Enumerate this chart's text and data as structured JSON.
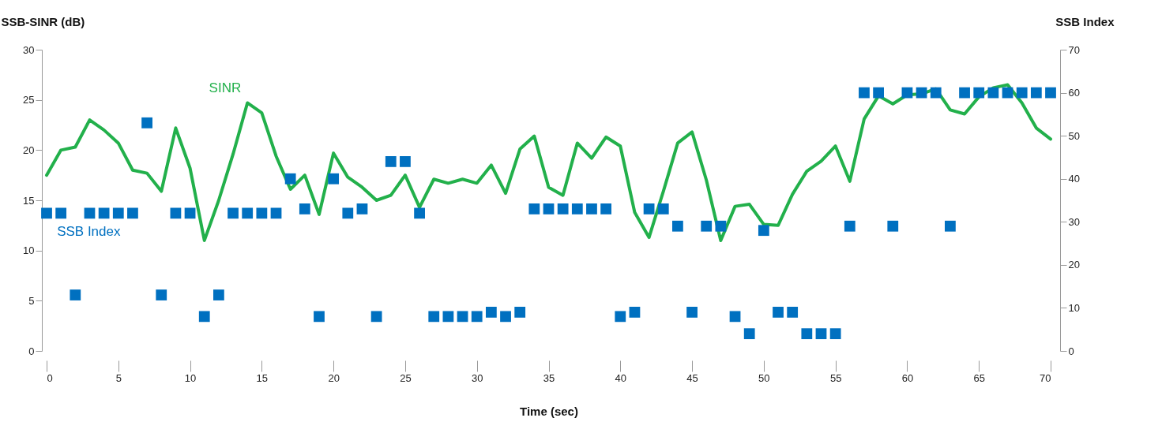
{
  "chart_data": {
    "type": "line",
    "xlabel": "Time (sec)",
    "ylabel": "SSB-SINR (dB)",
    "y2label": "SSB Index",
    "x": [
      0,
      1,
      2,
      3,
      4,
      5,
      6,
      7,
      8,
      9,
      10,
      11,
      12,
      13,
      14,
      15,
      16,
      17,
      18,
      19,
      20,
      21,
      22,
      23,
      24,
      25,
      26,
      27,
      28,
      29,
      30,
      31,
      32,
      33,
      34,
      35,
      36,
      37,
      38,
      39,
      40,
      41,
      42,
      43,
      44,
      45,
      46,
      47,
      48,
      49,
      50,
      51,
      52,
      53,
      54,
      55,
      56,
      57,
      58,
      59,
      60,
      61,
      62,
      63,
      64,
      65,
      66,
      67,
      68,
      69,
      70
    ],
    "xlim": [
      0,
      70
    ],
    "xticks": [
      0,
      5,
      10,
      15,
      20,
      25,
      30,
      35,
      40,
      45,
      50,
      55,
      60,
      65,
      70
    ],
    "ylim": [
      0,
      30
    ],
    "yticks": [
      0,
      5,
      10,
      15,
      20,
      25,
      30
    ],
    "y2lim": [
      0,
      70
    ],
    "y2ticks": [
      0,
      10,
      20,
      30,
      40,
      50,
      60,
      70
    ],
    "grid": false,
    "series": [
      {
        "name": "SINR",
        "color": "#22b04b",
        "values": [
          17.5,
          20,
          20.3,
          23,
          22,
          20.7,
          18,
          17.7,
          15.9,
          22.2,
          18.2,
          11,
          15,
          19.6,
          24.7,
          23.7,
          19.4,
          16.1,
          17.5,
          13.6,
          19.7,
          17.3,
          16.3,
          15,
          15.5,
          17.5,
          14.3,
          17.1,
          16.7,
          17.1,
          16.7,
          18.5,
          15.7,
          20.1,
          21.4,
          16.3,
          15.5,
          20.7,
          19.2,
          21.3,
          20.4,
          13.8,
          11.3,
          15.9,
          20.7,
          21.8,
          17,
          11,
          14.4,
          14.6,
          12.6,
          12.5,
          15.6,
          17.9,
          18.9,
          20.4,
          16.9,
          23.1,
          25.4,
          24.6,
          25.5,
          25.6,
          26.1,
          24,
          23.6,
          25.3,
          26.2,
          26.5,
          24.7,
          22.2,
          21.1
        ]
      },
      {
        "name": "SSB Index",
        "type": "scatter",
        "axis": "y2",
        "marker": "square",
        "color": "#0070c0",
        "values": [
          32,
          32,
          13,
          32,
          32,
          32,
          32,
          53,
          13,
          32,
          32,
          8,
          13,
          32,
          32,
          32,
          32,
          40,
          33,
          8,
          40,
          32,
          33,
          8,
          44,
          44,
          32,
          8,
          8,
          8,
          8,
          9,
          8,
          9,
          33,
          33,
          33,
          33,
          33,
          33,
          8,
          9,
          33,
          33,
          29,
          9,
          29,
          29,
          8,
          4,
          28,
          9,
          9,
          4,
          4,
          4,
          29,
          60,
          60,
          29,
          60,
          60,
          60,
          29,
          60,
          60,
          60,
          60,
          60,
          60,
          60
        ]
      }
    ]
  }
}
